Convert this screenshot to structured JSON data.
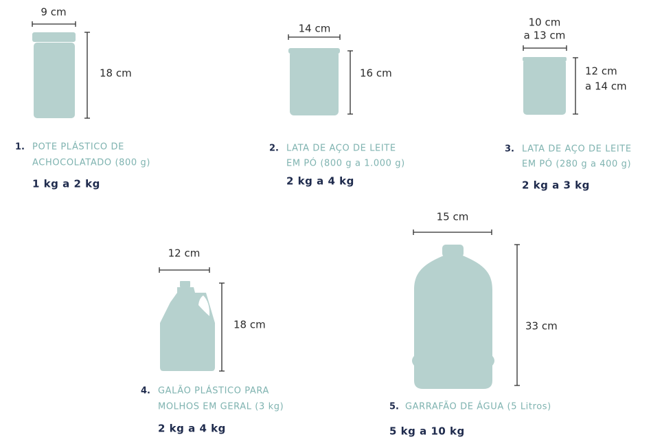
{
  "items": [
    {
      "number": "1.",
      "name": [
        "POTE PLÁSTICO DE",
        "ACHOCOLATADO (800 g)"
      ],
      "weight": "1 kg a 2 kg",
      "width": [
        "9 cm"
      ],
      "height": [
        "18 cm"
      ]
    },
    {
      "number": "2.",
      "name": [
        "LATA DE AÇO DE LEITE",
        "EM PÓ (800 g a 1.000 g)"
      ],
      "weight": "2 kg a 4 kg",
      "width": [
        "14 cm"
      ],
      "height": [
        "16 cm"
      ]
    },
    {
      "number": "3.",
      "name": [
        "LATA DE AÇO DE LEITE",
        "EM PÓ (280 g a 400 g)"
      ],
      "weight": "2 kg a 3 kg",
      "width": [
        "10 cm",
        "a 13 cm"
      ],
      "height": [
        "12 cm",
        "a 14 cm"
      ]
    },
    {
      "number": "4.",
      "name": [
        "GALÃO PLÁSTICO PARA",
        "MOLHOS EM GERAL (3 kg)"
      ],
      "weight": "2 kg a 4 kg",
      "width": [
        "12 cm"
      ],
      "height": [
        "18 cm"
      ]
    },
    {
      "number": "5.",
      "name": [
        "GARRAFÃO DE ÁGUA (5 Litros)"
      ],
      "weight": "5 kg a 10 kg",
      "width": [
        "15 cm"
      ],
      "height": [
        "33 cm"
      ]
    }
  ]
}
